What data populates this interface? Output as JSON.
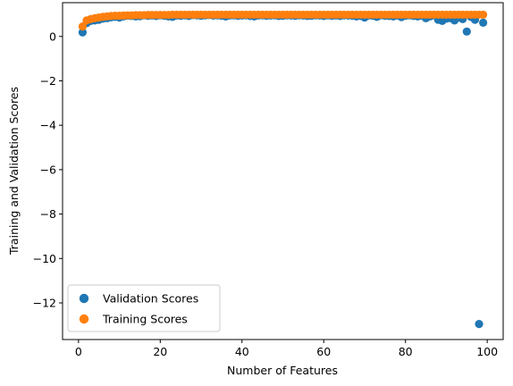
{
  "chart_data": {
    "type": "scatter",
    "title": "",
    "xlabel": "Number of Features",
    "ylabel": "Training and Validation Scores",
    "xlim": [
      -3.9,
      103.9
    ],
    "ylim": [
      -13.65,
      1.52
    ],
    "xticks": [
      0,
      20,
      40,
      60,
      80,
      100
    ],
    "yticks": [
      -12,
      -10,
      -8,
      -6,
      -4,
      -2,
      0
    ],
    "xtick_labels": [
      "0",
      "20",
      "40",
      "60",
      "80",
      "100"
    ],
    "ytick_labels": [
      "−12",
      "−10",
      "−8",
      "−6",
      "−4",
      "−2",
      "0"
    ],
    "grid": false,
    "legend_position": "lower-left",
    "x": [
      1,
      2,
      3,
      4,
      5,
      6,
      7,
      8,
      9,
      10,
      11,
      12,
      13,
      14,
      15,
      16,
      17,
      18,
      19,
      20,
      21,
      22,
      23,
      24,
      25,
      26,
      27,
      28,
      29,
      30,
      31,
      32,
      33,
      34,
      35,
      36,
      37,
      38,
      39,
      40,
      41,
      42,
      43,
      44,
      45,
      46,
      47,
      48,
      49,
      50,
      51,
      52,
      53,
      54,
      55,
      56,
      57,
      58,
      59,
      60,
      61,
      62,
      63,
      64,
      65,
      66,
      67,
      68,
      69,
      70,
      71,
      72,
      73,
      74,
      75,
      76,
      77,
      78,
      79,
      80,
      81,
      82,
      83,
      84,
      85,
      86,
      87,
      88,
      89,
      90,
      91,
      92,
      93,
      94,
      95,
      96,
      97,
      98,
      99
    ],
    "series": [
      {
        "name": "Validation Scores",
        "color": "#1f77b4",
        "values": [
          0.18,
          0.6,
          0.7,
          0.72,
          0.75,
          0.8,
          0.82,
          0.86,
          0.88,
          0.85,
          0.9,
          0.93,
          0.92,
          0.9,
          0.91,
          0.95,
          0.93,
          0.94,
          0.92,
          0.95,
          0.93,
          0.9,
          0.88,
          0.94,
          0.93,
          0.95,
          0.92,
          0.96,
          0.95,
          0.93,
          0.95,
          0.96,
          0.94,
          0.95,
          0.93,
          0.9,
          0.94,
          0.95,
          0.93,
          0.94,
          0.95,
          0.92,
          0.9,
          0.94,
          0.95,
          0.93,
          0.94,
          0.95,
          0.92,
          0.93,
          0.95,
          0.94,
          0.93,
          0.95,
          0.94,
          0.92,
          0.93,
          0.95,
          0.94,
          0.92,
          0.95,
          0.93,
          0.94,
          0.92,
          0.95,
          0.94,
          0.93,
          0.9,
          0.92,
          0.85,
          0.94,
          0.93,
          0.88,
          0.95,
          0.93,
          0.92,
          0.9,
          0.94,
          0.87,
          0.93,
          0.95,
          0.92,
          0.9,
          0.93,
          0.82,
          0.9,
          0.95,
          0.75,
          0.7,
          0.8,
          0.82,
          0.72,
          0.85,
          0.78,
          0.22,
          0.88,
          0.75,
          -12.95,
          0.62
        ]
      },
      {
        "name": "Training Scores",
        "color": "#ff7f0e",
        "values": [
          0.45,
          0.72,
          0.78,
          0.82,
          0.85,
          0.88,
          0.9,
          0.92,
          0.93,
          0.93,
          0.94,
          0.95,
          0.95,
          0.96,
          0.96,
          0.96,
          0.97,
          0.97,
          0.97,
          0.97,
          0.97,
          0.97,
          0.98,
          0.98,
          0.98,
          0.98,
          0.98,
          0.98,
          0.98,
          0.98,
          0.98,
          0.98,
          0.98,
          0.98,
          0.98,
          0.98,
          0.98,
          0.98,
          0.98,
          0.98,
          0.98,
          0.98,
          0.98,
          0.98,
          0.98,
          0.98,
          0.98,
          0.98,
          0.98,
          0.98,
          0.98,
          0.98,
          0.98,
          0.98,
          0.98,
          0.98,
          0.98,
          0.98,
          0.98,
          0.98,
          0.98,
          0.98,
          0.98,
          0.98,
          0.98,
          0.98,
          0.98,
          0.98,
          0.98,
          0.98,
          0.98,
          0.98,
          0.98,
          0.98,
          0.98,
          0.98,
          0.98,
          0.98,
          0.98,
          0.98,
          0.98,
          0.98,
          0.98,
          0.98,
          0.98,
          0.98,
          0.98,
          0.98,
          0.98,
          0.98,
          0.98,
          0.98,
          0.98,
          0.98,
          0.98,
          0.98,
          0.98,
          0.98,
          0.98
        ]
      }
    ]
  }
}
